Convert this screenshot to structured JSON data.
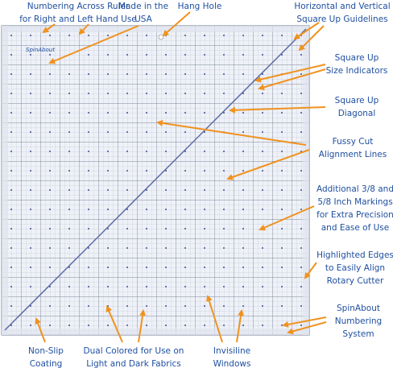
{
  "logo": "SpinAbout",
  "callouts": [
    {
      "lines": [
        "Numbering Across Ruler",
        "for Right and Left Hand Use"
      ]
    },
    {
      "lines": [
        "Made in the",
        "USA"
      ]
    },
    {
      "lines": [
        "Hang Hole"
      ]
    },
    {
      "lines": [
        "Horizontal and Vertical",
        "Square Up Guidelines"
      ]
    },
    {
      "lines": [
        "Square Up",
        "Size Indicators"
      ]
    },
    {
      "lines": [
        "Square Up",
        "Diagonal"
      ]
    },
    {
      "lines": [
        "Fussy Cut",
        "Alignment Lines"
      ]
    },
    {
      "lines": [
        "Additional 3/8 and",
        "5/8 Inch Markings",
        "for Extra Precision",
        "and Ease of Use"
      ]
    },
    {
      "lines": [
        "Highlighted Edges",
        "to Easily Align",
        "Rotary Cutter"
      ]
    },
    {
      "lines": [
        "SpinAbout",
        "Numbering",
        "System"
      ]
    },
    {
      "lines": [
        "Non-Slip",
        "Coating"
      ]
    },
    {
      "lines": [
        "Dual Colored for Use on",
        "Light and Dark Fabrics"
      ]
    },
    {
      "lines": [
        "Invisiline",
        "Windows"
      ]
    }
  ]
}
